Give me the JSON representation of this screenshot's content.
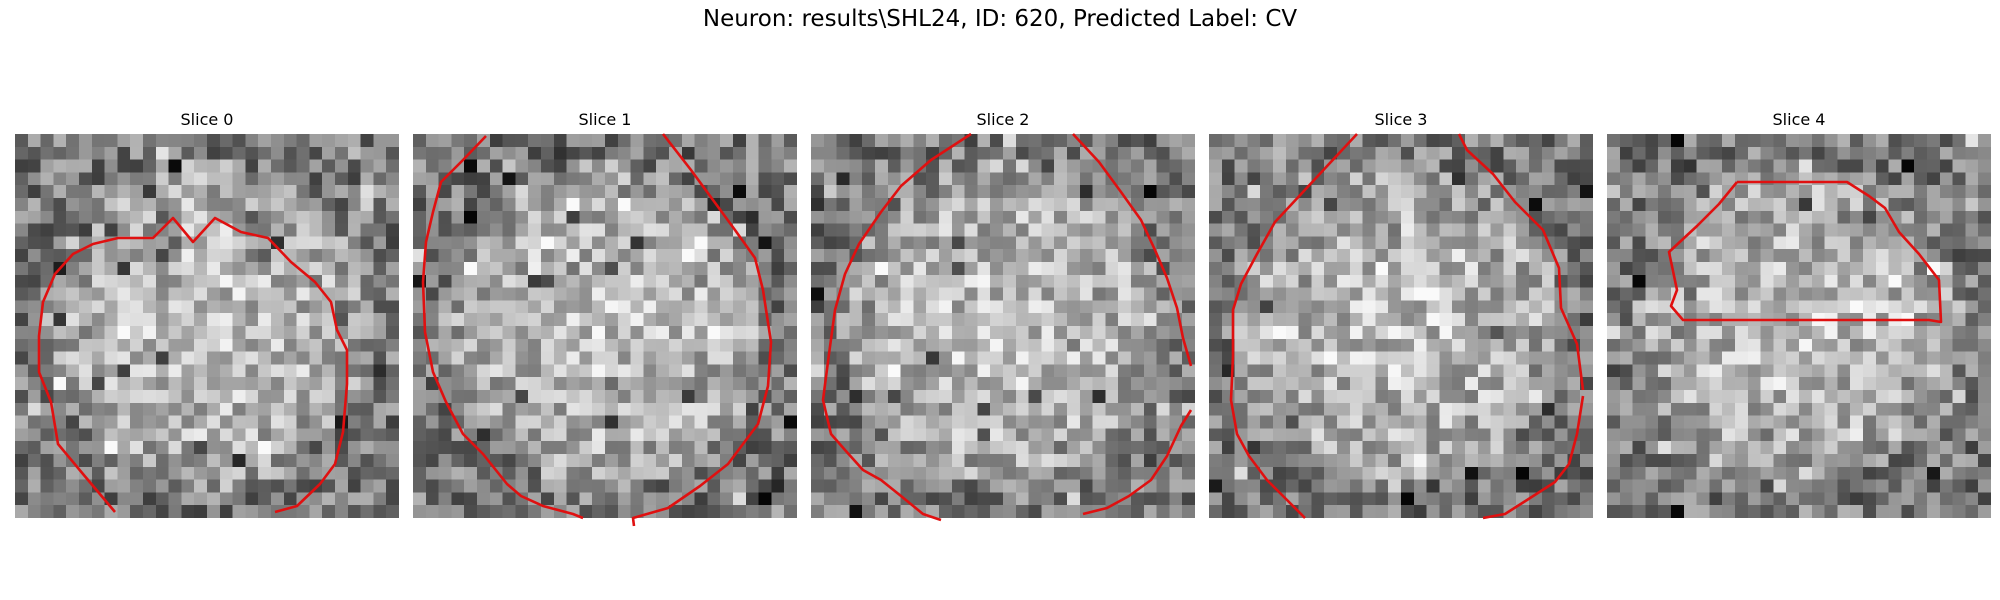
{
  "figure": {
    "title": "Neuron: results\\SHL24, ID: 620, Predicted Label: CV",
    "contour_color": "#e01010"
  },
  "panels": [
    {
      "title": "Slice 0"
    },
    {
      "title": "Slice 1"
    },
    {
      "title": "Slice 2"
    },
    {
      "title": "Slice 3"
    },
    {
      "title": "Slice 4"
    }
  ]
}
